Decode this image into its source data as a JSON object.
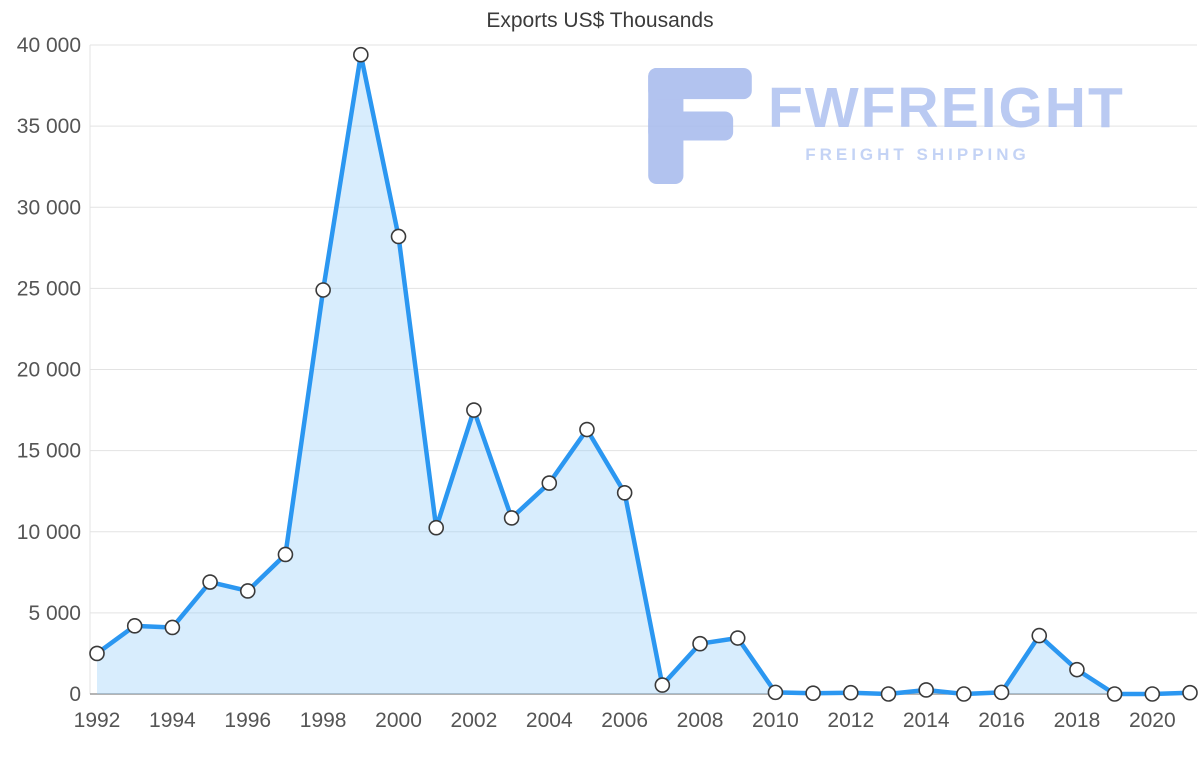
{
  "chart_data": {
    "type": "area",
    "title": "Exports US$ Thousands",
    "x": [
      1992,
      1993,
      1994,
      1995,
      1996,
      1997,
      1998,
      1999,
      2000,
      2001,
      2002,
      2003,
      2004,
      2005,
      2006,
      2007,
      2008,
      2009,
      2010,
      2011,
      2012,
      2013,
      2014,
      2015,
      2016,
      2017,
      2018,
      2019,
      2020,
      2021
    ],
    "series": [
      {
        "name": "Exports US$ Thousands",
        "values": [
          2500,
          4200,
          4100,
          6900,
          6350,
          8600,
          24900,
          39400,
          28200,
          10250,
          17500,
          10850,
          13000,
          16300,
          12400,
          550,
          3100,
          3450,
          100,
          50,
          80,
          0,
          250,
          0,
          100,
          3600,
          1500,
          0,
          0,
          80
        ]
      }
    ],
    "xlabel": "",
    "ylabel": "",
    "ylim": [
      0,
      40000
    ],
    "ytick_step": 5000,
    "xtick_step": 2,
    "ytick_labels": [
      "0",
      "5 000",
      "10 000",
      "15 000",
      "20 000",
      "25 000",
      "30 000",
      "35 000",
      "40 000"
    ],
    "grid": "horizontal",
    "legend": "none",
    "colors": {
      "line": "#2b97f1",
      "area": "rgba(144,202,249,0.35)",
      "marker_fill": "#ffffff",
      "marker_stroke": "#3a3a3a",
      "grid": "#e3e3e3",
      "axis": "#9b9b9b",
      "tick_text": "#555555",
      "title_text": "#3b3b3b"
    }
  },
  "watermark": {
    "brand": "FWFREIGHT",
    "tagline": "FREIGHT SHIPPING",
    "color": "#aabdee"
  }
}
